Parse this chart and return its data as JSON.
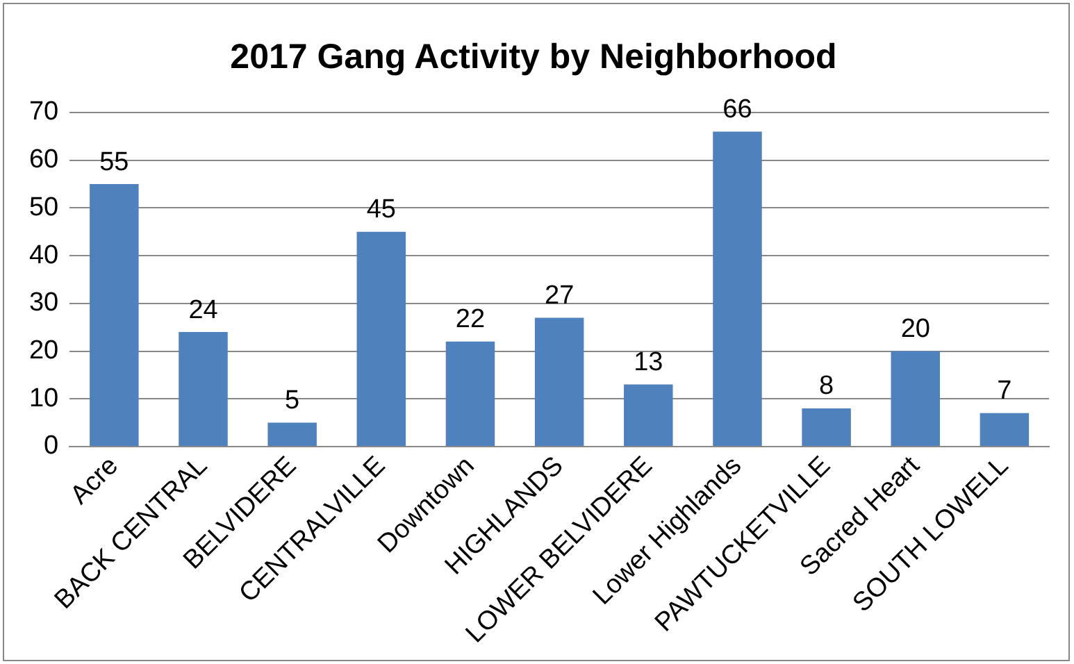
{
  "chart_data": {
    "type": "bar",
    "title": "2017 Gang Activity by Neighborhood",
    "categories": [
      "Acre",
      "BACK CENTRAL",
      "BELVIDERE",
      "CENTRALVILLE",
      "Downtown",
      "HIGHLANDS",
      "LOWER BELVIDERE",
      "Lower Highlands",
      "PAWTUCKETVILLE",
      "Sacred Heart",
      "SOUTH LOWELL"
    ],
    "values": [
      55,
      24,
      5,
      45,
      22,
      27,
      13,
      66,
      8,
      20,
      7
    ],
    "color": "#4f81bd",
    "ylim": [
      0,
      70
    ],
    "yticks": [
      0,
      10,
      20,
      30,
      40,
      50,
      60,
      70
    ],
    "grid": "y",
    "data_labels": true,
    "legend": false
  }
}
